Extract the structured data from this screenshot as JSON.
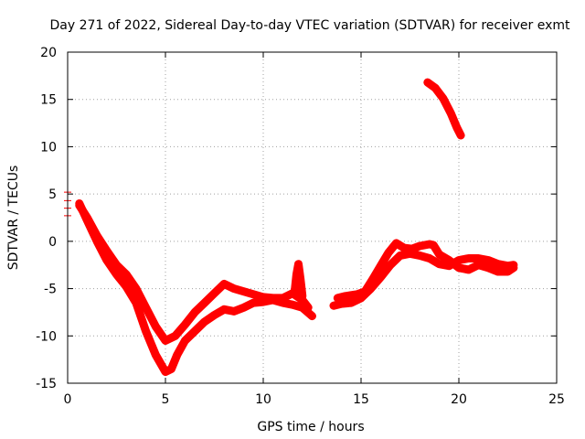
{
  "chart_data": {
    "type": "scatter",
    "title": "Day 271 of 2022, Sidereal Day-to-day VTEC variation (SDTVAR) for receiver exmt",
    "xlabel": "GPS time / hours",
    "ylabel": "SDTVAR / TECUs",
    "xlim": [
      0,
      25
    ],
    "ylim": [
      -15,
      20
    ],
    "xticks": [
      "0",
      "5",
      "10",
      "15",
      "20",
      "25"
    ],
    "yticks": [
      "-15",
      "-10",
      "-5",
      "0",
      "5",
      "10",
      "15",
      "20"
    ],
    "grid": true,
    "marker": "plus",
    "series_color": "#ff0000",
    "series": [
      {
        "name": "start-markers",
        "points": [
          [
            0,
            5.2
          ],
          [
            0,
            4.3
          ],
          [
            0,
            3.5
          ],
          [
            0,
            2.7
          ]
        ]
      },
      {
        "name": "lower-trace",
        "points": [
          [
            0.6,
            4.0
          ],
          [
            1.0,
            2.2
          ],
          [
            1.5,
            0.0
          ],
          [
            2.0,
            -2.0
          ],
          [
            2.5,
            -3.5
          ],
          [
            3.0,
            -4.8
          ],
          [
            3.5,
            -6.5
          ],
          [
            4.0,
            -9.5
          ],
          [
            4.5,
            -12.0
          ],
          [
            5.0,
            -13.8
          ],
          [
            5.3,
            -13.5
          ],
          [
            5.6,
            -12.0
          ],
          [
            6.0,
            -10.5
          ],
          [
            6.5,
            -9.5
          ],
          [
            7.0,
            -8.5
          ],
          [
            7.5,
            -7.8
          ],
          [
            8.0,
            -7.2
          ],
          [
            8.5,
            -7.4
          ],
          [
            9.0,
            -7.0
          ],
          [
            9.5,
            -6.5
          ],
          [
            10.0,
            -6.4
          ],
          [
            10.5,
            -6.2
          ],
          [
            11.0,
            -6.5
          ],
          [
            11.5,
            -6.7
          ],
          [
            12.0,
            -7.0
          ],
          [
            12.5,
            -7.9
          ]
        ]
      },
      {
        "name": "upper-trace",
        "points": [
          [
            0.6,
            3.8
          ],
          [
            1.0,
            2.5
          ],
          [
            1.5,
            0.6
          ],
          [
            2.0,
            -1.0
          ],
          [
            2.5,
            -2.5
          ],
          [
            3.0,
            -3.5
          ],
          [
            3.5,
            -5.0
          ],
          [
            4.0,
            -7.0
          ],
          [
            4.5,
            -9.0
          ],
          [
            5.0,
            -10.5
          ],
          [
            5.5,
            -10.0
          ],
          [
            6.0,
            -8.8
          ],
          [
            6.5,
            -7.5
          ],
          [
            7.0,
            -6.5
          ],
          [
            7.5,
            -5.5
          ],
          [
            8.0,
            -4.5
          ],
          [
            8.5,
            -5.0
          ],
          [
            9.0,
            -5.3
          ],
          [
            9.5,
            -5.6
          ],
          [
            10.0,
            -5.9
          ],
          [
            10.5,
            -6.0
          ],
          [
            11.0,
            -6.0
          ],
          [
            11.5,
            -5.5
          ],
          [
            12.0,
            -6.2
          ],
          [
            12.3,
            -7.0
          ]
        ]
      },
      {
        "name": "spike-near-12",
        "points": [
          [
            11.6,
            -5.5
          ],
          [
            11.7,
            -3.5
          ],
          [
            11.8,
            -2.4
          ],
          [
            11.9,
            -4.0
          ],
          [
            12.0,
            -5.8
          ]
        ]
      },
      {
        "name": "afternoon-trace-a",
        "points": [
          [
            13.6,
            -6.8
          ],
          [
            14.0,
            -6.6
          ],
          [
            14.5,
            -6.5
          ],
          [
            15.0,
            -6.0
          ],
          [
            15.5,
            -5.0
          ],
          [
            16.0,
            -3.8
          ],
          [
            16.5,
            -2.5
          ],
          [
            17.0,
            -1.5
          ],
          [
            17.5,
            -1.3
          ],
          [
            18.0,
            -1.5
          ],
          [
            18.5,
            -1.8
          ],
          [
            19.0,
            -2.4
          ],
          [
            19.5,
            -2.6
          ],
          [
            20.0,
            -2.0
          ],
          [
            20.5,
            -1.8
          ],
          [
            21.0,
            -1.8
          ],
          [
            21.5,
            -2.0
          ],
          [
            22.0,
            -2.4
          ],
          [
            22.5,
            -2.6
          ],
          [
            22.8,
            -2.5
          ]
        ]
      },
      {
        "name": "afternoon-trace-b",
        "points": [
          [
            13.8,
            -6.0
          ],
          [
            14.2,
            -5.8
          ],
          [
            14.8,
            -5.6
          ],
          [
            15.2,
            -5.3
          ],
          [
            15.6,
            -4.0
          ],
          [
            16.0,
            -2.6
          ],
          [
            16.4,
            -1.2
          ],
          [
            16.8,
            -0.2
          ],
          [
            17.2,
            -0.7
          ],
          [
            17.6,
            -0.8
          ],
          [
            18.0,
            -0.5
          ],
          [
            18.5,
            -0.3
          ],
          [
            18.7,
            -0.4
          ],
          [
            19.0,
            -1.4
          ],
          [
            19.5,
            -2.0
          ],
          [
            20.0,
            -2.8
          ],
          [
            20.5,
            -3.0
          ],
          [
            21.0,
            -2.5
          ],
          [
            21.5,
            -2.8
          ],
          [
            22.0,
            -3.2
          ],
          [
            22.5,
            -3.2
          ],
          [
            22.8,
            -2.8
          ]
        ]
      },
      {
        "name": "isolated-segment",
        "points": [
          [
            18.4,
            16.8
          ],
          [
            18.8,
            16.2
          ],
          [
            19.2,
            15.1
          ],
          [
            19.6,
            13.5
          ],
          [
            19.9,
            12.0
          ],
          [
            20.1,
            11.2
          ]
        ]
      }
    ]
  }
}
